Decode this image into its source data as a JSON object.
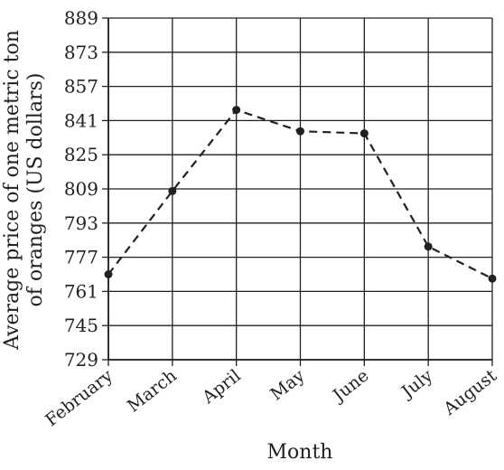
{
  "chart_data": {
    "type": "line",
    "title": "",
    "xlabel": "Month",
    "ylabel": "Average price of one metric ton of oranges (US dollars)",
    "ylabel_lines": [
      "Average price of one metric ton",
      "of oranges (US dollars)"
    ],
    "categories": [
      "February",
      "March",
      "April",
      "May",
      "June",
      "July",
      "August"
    ],
    "series": [
      {
        "values": [
          769,
          808,
          846,
          836,
          835,
          782,
          767
        ],
        "line_style": "dashed",
        "marker": "circle",
        "color": "#231f20"
      }
    ],
    "ylim": [
      729,
      889
    ],
    "yticks": [
      729,
      745,
      761,
      777,
      793,
      809,
      825,
      841,
      857,
      873,
      889
    ],
    "ytick_labels": [
      "729",
      "745",
      "761",
      "777",
      "793",
      "809",
      "825",
      "841",
      "857",
      "873",
      "889"
    ],
    "grid": true,
    "legend": "none"
  }
}
